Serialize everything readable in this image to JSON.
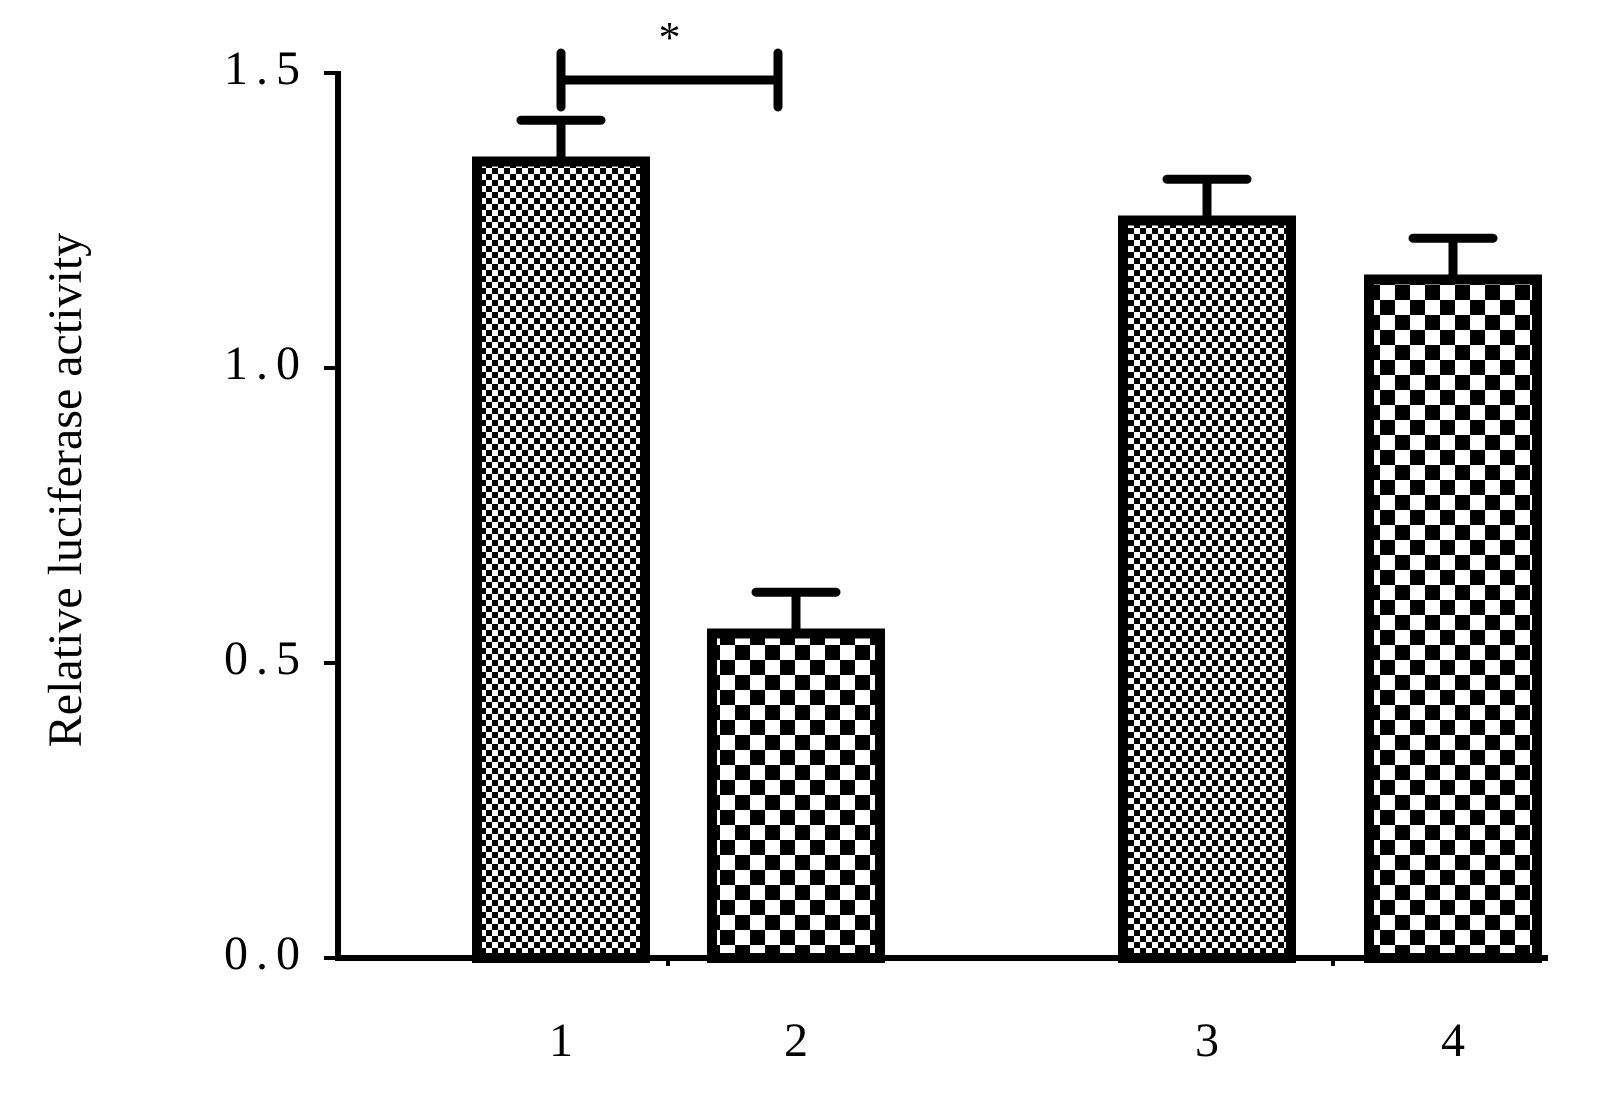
{
  "chart_data": {
    "type": "bar",
    "y_label": "Relative luciferase activity",
    "categories": [
      "1",
      "2",
      "3",
      "4"
    ],
    "values": [
      1.35,
      0.55,
      1.25,
      1.15
    ],
    "errors": [
      0.07,
      0.07,
      0.07,
      0.07
    ],
    "patterns": [
      "fine",
      "coarse",
      "fine",
      "coarse"
    ],
    "color": "#000000",
    "ylim": [
      0,
      1.5
    ],
    "yticks": [
      {
        "value": 0,
        "label": "0.0"
      },
      {
        "value": 0.5,
        "label": "0.5"
      },
      {
        "value": 1,
        "label": "1.0"
      },
      {
        "value": 1.5,
        "label": "1.5"
      }
    ],
    "significance": {
      "between": [
        0,
        1
      ],
      "label": "*"
    }
  }
}
